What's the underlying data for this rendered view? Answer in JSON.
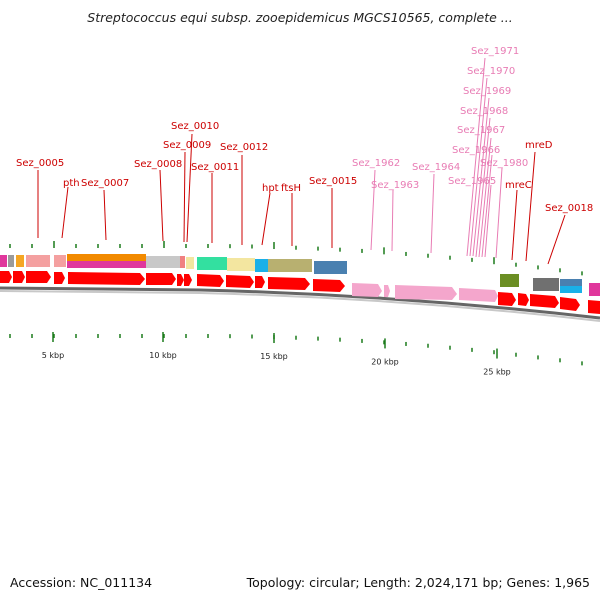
{
  "header": {
    "title": "Streptococcus equi subsp. zooepidemicus MGCS10565, complete ..."
  },
  "footer": {
    "accession": "Accession: NC_011134",
    "summary": "Topology: circular; Length: 2,024,171 bp; Genes: 1,965"
  },
  "colors": {
    "gene_label": "#cc0000",
    "rna_label": "#e87cb4",
    "forward_gene": "#ff0000",
    "rna_gene": "#f4a6cc",
    "tick": "#1a7a1a",
    "backbone": "#777777"
  },
  "scale": {
    "ticks": [
      "5 kbp",
      "10 kbp",
      "15 kbp",
      "20 kbp",
      "25 kbp"
    ]
  },
  "gene_labels": [
    {
      "text": "Sez_0005",
      "kind": "gene"
    },
    {
      "text": "pth",
      "kind": "gene"
    },
    {
      "text": "Sez_0007",
      "kind": "gene"
    },
    {
      "text": "Sez_0008",
      "kind": "gene"
    },
    {
      "text": "Sez_0009",
      "kind": "gene"
    },
    {
      "text": "Sez_0010",
      "kind": "gene"
    },
    {
      "text": "Sez_0011",
      "kind": "gene"
    },
    {
      "text": "Sez_0012",
      "kind": "gene"
    },
    {
      "text": "hpt",
      "kind": "gene"
    },
    {
      "text": "ftsH",
      "kind": "gene"
    },
    {
      "text": "Sez_0015",
      "kind": "gene"
    },
    {
      "text": "Sez_1962",
      "kind": "rna"
    },
    {
      "text": "Sez_1963",
      "kind": "rna"
    },
    {
      "text": "Sez_1964",
      "kind": "rna"
    },
    {
      "text": "Sez_1965",
      "kind": "rna"
    },
    {
      "text": "Sez_1966",
      "kind": "rna"
    },
    {
      "text": "Sez_1967",
      "kind": "rna"
    },
    {
      "text": "Sez_1968",
      "kind": "rna"
    },
    {
      "text": "Sez_1969",
      "kind": "rna"
    },
    {
      "text": "Sez_1970",
      "kind": "rna"
    },
    {
      "text": "Sez_1971",
      "kind": "rna"
    },
    {
      "text": "Sez_1980",
      "kind": "rna"
    },
    {
      "text": "mreC",
      "kind": "gene"
    },
    {
      "text": "mreD",
      "kind": "gene"
    },
    {
      "text": "Sez_0018",
      "kind": "gene"
    }
  ]
}
